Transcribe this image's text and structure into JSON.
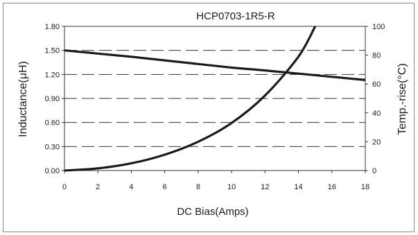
{
  "chart_data": {
    "type": "line",
    "title": "HCP0703-1R5-R",
    "xlabel": "DC Bias(Amps)",
    "ylabel_left": "Inductance(μH)",
    "ylabel_right": "Temp.-rise(°C)",
    "xlim": [
      0,
      18
    ],
    "ylim_left": [
      0,
      1.8
    ],
    "ylim_right": [
      0,
      100
    ],
    "x_ticks": [
      "0",
      "2",
      "4",
      "6",
      "8",
      "10",
      "12",
      "14",
      "16",
      "18"
    ],
    "y_ticks_left": [
      "0.00",
      "0.30",
      "0.60",
      "0.90",
      "1.20",
      "1.50",
      "1.80"
    ],
    "y_ticks_right": [
      "0",
      "20",
      "40",
      "60",
      "80",
      "100"
    ],
    "grid": "horizontal dashed",
    "series": [
      {
        "axis": "left",
        "x": [
          0,
          2,
          4,
          6,
          8,
          10,
          12,
          14,
          16,
          18
        ],
        "values": [
          1.5,
          1.46,
          1.42,
          1.375,
          1.33,
          1.285,
          1.25,
          1.21,
          1.17,
          1.13
        ]
      },
      {
        "axis": "right",
        "x": [
          0,
          2,
          4,
          6,
          8,
          10,
          12,
          14,
          15
        ],
        "values": [
          0,
          1.5,
          5,
          11,
          20,
          33,
          52,
          79,
          100
        ]
      }
    ],
    "line_color": "#1a1a1a"
  }
}
